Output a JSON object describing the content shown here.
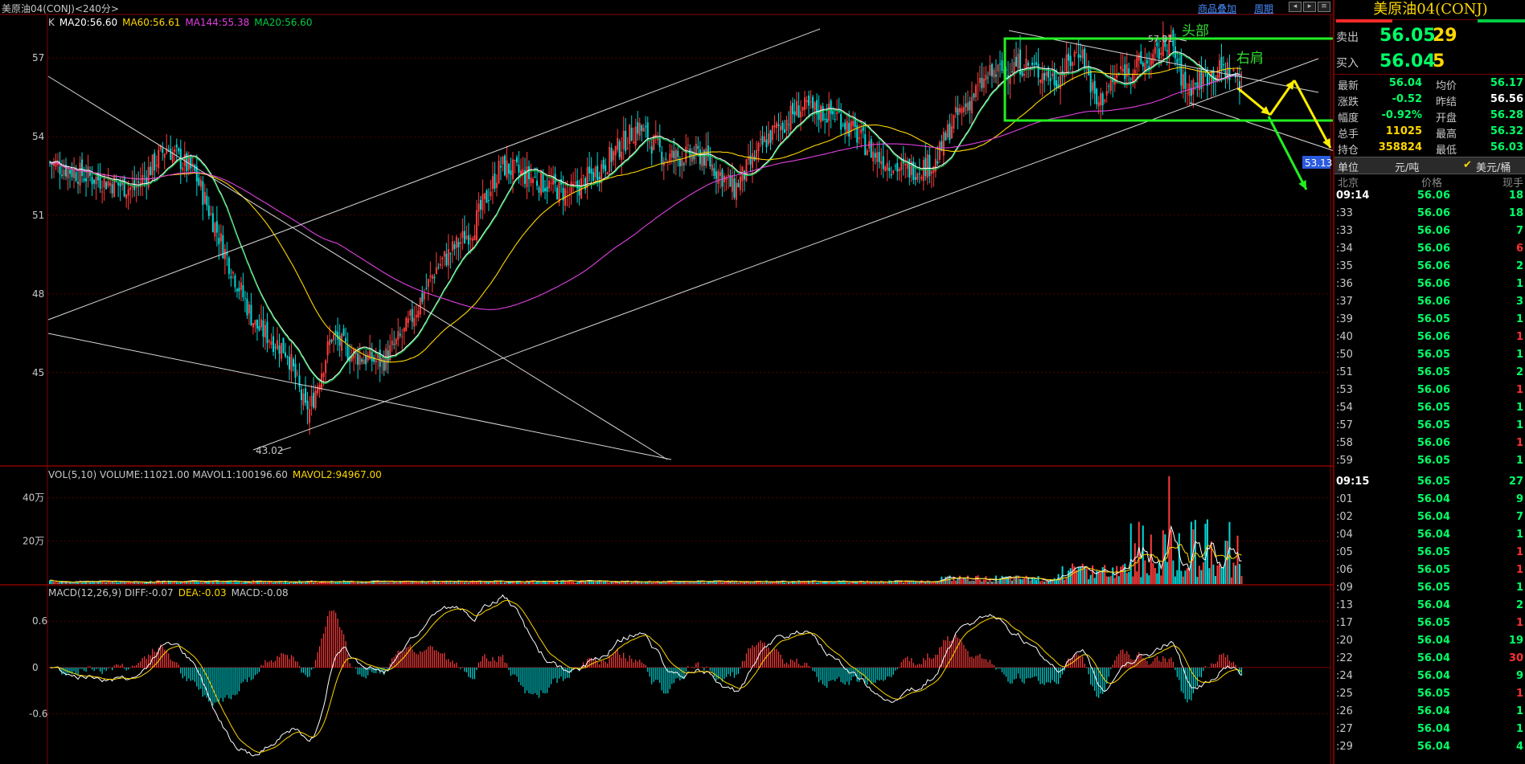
{
  "header": {
    "title": "美原油04(CONJ)<240分>",
    "overlay_btn": "商品叠加",
    "period_btn": "周期"
  },
  "legends": {
    "price": [
      {
        "text": "K",
        "color": "#c8c8c8"
      },
      {
        "text": "MA20:56.60",
        "color": "#ffffff"
      },
      {
        "text": "MA60:56.61",
        "color": "#ffd700"
      },
      {
        "text": "MA144:55.38",
        "color": "#e040e0"
      },
      {
        "text": "MA20:56.60",
        "color": "#00cc44"
      }
    ],
    "volume": [
      {
        "text": "VOL(5,10) VOLUME:11021.00 MAVOL1:100196.60",
        "color": "#c8c8c8"
      },
      {
        "text": "MAVOL2:94967.00",
        "color": "#ffd700"
      }
    ],
    "macd": [
      {
        "text": "MACD(12,26,9) DIFF:-0.07",
        "color": "#c8c8c8"
      },
      {
        "text": "DEA:-0.03",
        "color": "#ffd700"
      },
      {
        "text": "MACD:-0.08",
        "color": "#c8c8c8"
      }
    ]
  },
  "annotations": {
    "head": "头部",
    "right_shoulder": "右肩",
    "high_label": "57.81",
    "low_label": "43.02",
    "price_tag": "53.13"
  },
  "chart_data": {
    "type": "candlestick",
    "price_axis": {
      "ticks": [
        57,
        54,
        51,
        48,
        45
      ],
      "range": [
        41.5,
        58.6
      ]
    },
    "volume_axis": {
      "ticks": [
        "40万",
        "20万"
      ],
      "range_wan": [
        0,
        54
      ]
    },
    "macd_axis": {
      "ticks": [
        "0.6",
        "0",
        "-0.6"
      ],
      "range": [
        -1.25,
        1.05
      ]
    },
    "low": 43.02,
    "high": 57.81,
    "anchors": [
      [
        0,
        53.0
      ],
      [
        18,
        52.5
      ],
      [
        42,
        52.0
      ],
      [
        58,
        53.6
      ],
      [
        72,
        52.6
      ],
      [
        90,
        49.0
      ],
      [
        102,
        46.8
      ],
      [
        118,
        45.8
      ],
      [
        128,
        43.3
      ],
      [
        140,
        46.4
      ],
      [
        150,
        45.7
      ],
      [
        165,
        45.4
      ],
      [
        176,
        46.5
      ],
      [
        192,
        49.0
      ],
      [
        210,
        50.5
      ],
      [
        224,
        52.9
      ],
      [
        240,
        52.4
      ],
      [
        258,
        51.8
      ],
      [
        276,
        53.0
      ],
      [
        292,
        54.4
      ],
      [
        306,
        53.2
      ],
      [
        324,
        53.3
      ],
      [
        340,
        52.0
      ],
      [
        356,
        53.9
      ],
      [
        372,
        55.1
      ],
      [
        392,
        54.8
      ],
      [
        410,
        53.3
      ],
      [
        424,
        52.7
      ],
      [
        440,
        53.0
      ],
      [
        448,
        54.5
      ],
      [
        466,
        56.3
      ],
      [
        482,
        56.8
      ],
      [
        500,
        56.2
      ],
      [
        512,
        57.4
      ],
      [
        520,
        55.2
      ],
      [
        532,
        56.5
      ],
      [
        548,
        56.9
      ],
      [
        556,
        57.8
      ],
      [
        564,
        55.8
      ],
      [
        574,
        56.3
      ],
      [
        584,
        56.6
      ],
      [
        592,
        56.05
      ]
    ],
    "ma_series": [
      {
        "color": "#ffffff",
        "period": 20
      },
      {
        "color": "#00cc44",
        "period": 20
      },
      {
        "color": "#ffd700",
        "period": 60
      },
      {
        "color": "#e040e0",
        "period": 144
      }
    ],
    "macd": {
      "diff": -0.07,
      "dea": -0.03,
      "macd": -0.08
    },
    "volume_last": 11021.0,
    "mavol1": 100196.6,
    "mavol2": 94967.0
  },
  "quote": {
    "title": "美原油04(CONJ)",
    "sell": {
      "label": "卖出",
      "price": "56.05",
      "vol": "29"
    },
    "buy": {
      "label": "买入",
      "price": "56.04",
      "vol": "5"
    },
    "stats_left": [
      {
        "label": "最新",
        "value": "56.04",
        "color": "#00ff66"
      },
      {
        "label": "涨跌",
        "value": "-0.52",
        "color": "#00ff66"
      },
      {
        "label": "幅度",
        "value": "-0.92%",
        "color": "#00ff66"
      },
      {
        "label": "总手",
        "value": "11025",
        "color": "#ffd700"
      },
      {
        "label": "持仓",
        "value": "358824",
        "color": "#ffd700"
      }
    ],
    "stats_right": [
      {
        "label": "均价",
        "value": "56.17",
        "color": "#00ff66"
      },
      {
        "label": "昨结",
        "value": "56.56",
        "color": "#ffffff"
      },
      {
        "label": "开盘",
        "value": "56.28",
        "color": "#00ff66"
      },
      {
        "label": "最高",
        "value": "56.32",
        "color": "#00ff66"
      },
      {
        "label": "最低",
        "value": "56.03",
        "color": "#00ff66"
      }
    ],
    "unit_label": "单位",
    "unit_value": "元/吨",
    "unit_alt": "美元/桶",
    "tick_headers": {
      "time": "北京",
      "price": "价格",
      "vol": "现手"
    },
    "ticks": [
      {
        "t": "09:14",
        "p": "56.06",
        "v": "18",
        "pc": "#00ff66",
        "vc": "#00ff66",
        "bold": true
      },
      {
        "t": ":33",
        "p": "56.06",
        "v": "18",
        "pc": "#00ff66",
        "vc": "#00ff66"
      },
      {
        "t": ":33",
        "p": "56.06",
        "v": "7",
        "pc": "#00ff66",
        "vc": "#00ff66"
      },
      {
        "t": ":34",
        "p": "56.06",
        "v": "6",
        "pc": "#00ff66",
        "vc": "#ff3030"
      },
      {
        "t": ":35",
        "p": "56.06",
        "v": "2",
        "pc": "#00ff66",
        "vc": "#00ff66"
      },
      {
        "t": ":36",
        "p": "56.06",
        "v": "1",
        "pc": "#00ff66",
        "vc": "#00ff66"
      },
      {
        "t": ":37",
        "p": "56.06",
        "v": "3",
        "pc": "#00ff66",
        "vc": "#00ff66"
      },
      {
        "t": ":39",
        "p": "56.05",
        "v": "1",
        "pc": "#00ff66",
        "vc": "#00ff66"
      },
      {
        "t": ":40",
        "p": "56.06",
        "v": "1",
        "pc": "#00ff66",
        "vc": "#ff3030"
      },
      {
        "t": ":50",
        "p": "56.05",
        "v": "1",
        "pc": "#00ff66",
        "vc": "#00ff66"
      },
      {
        "t": ":51",
        "p": "56.05",
        "v": "2",
        "pc": "#00ff66",
        "vc": "#00ff66"
      },
      {
        "t": ":53",
        "p": "56.06",
        "v": "1",
        "pc": "#00ff66",
        "vc": "#ff3030"
      },
      {
        "t": ":54",
        "p": "56.05",
        "v": "1",
        "pc": "#00ff66",
        "vc": "#00ff66"
      },
      {
        "t": ":57",
        "p": "56.05",
        "v": "1",
        "pc": "#00ff66",
        "vc": "#00ff66"
      },
      {
        "t": ":58",
        "p": "56.06",
        "v": "1",
        "pc": "#00ff66",
        "vc": "#ff3030"
      },
      {
        "t": ":59",
        "p": "56.05",
        "v": "1",
        "pc": "#00ff66",
        "vc": "#00ff66"
      },
      {
        "t": "09:15",
        "p": "56.05",
        "v": "27",
        "pc": "#00ff66",
        "vc": "#00ff66",
        "bold": true
      },
      {
        "t": ":01",
        "p": "56.04",
        "v": "9",
        "pc": "#00ff66",
        "vc": "#00ff66"
      },
      {
        "t": ":02",
        "p": "56.04",
        "v": "7",
        "pc": "#00ff66",
        "vc": "#00ff66"
      },
      {
        "t": ":04",
        "p": "56.04",
        "v": "1",
        "pc": "#00ff66",
        "vc": "#00ff66"
      },
      {
        "t": ":05",
        "p": "56.05",
        "v": "1",
        "pc": "#00ff66",
        "vc": "#ff3030"
      },
      {
        "t": ":06",
        "p": "56.05",
        "v": "1",
        "pc": "#00ff66",
        "vc": "#ff3030"
      },
      {
        "t": ":09",
        "p": "56.05",
        "v": "1",
        "pc": "#00ff66",
        "vc": "#00ff66"
      },
      {
        "t": ":13",
        "p": "56.04",
        "v": "2",
        "pc": "#00ff66",
        "vc": "#00ff66"
      },
      {
        "t": ":17",
        "p": "56.05",
        "v": "1",
        "pc": "#00ff66",
        "vc": "#ff3030"
      },
      {
        "t": ":20",
        "p": "56.04",
        "v": "19",
        "pc": "#00ff66",
        "vc": "#00ff66"
      },
      {
        "t": ":22",
        "p": "56.04",
        "v": "30",
        "pc": "#00ff66",
        "vc": "#ff3030"
      },
      {
        "t": ":24",
        "p": "56.04",
        "v": "9",
        "pc": "#00ff66",
        "vc": "#00ff66"
      },
      {
        "t": ":25",
        "p": "56.05",
        "v": "1",
        "pc": "#00ff66",
        "vc": "#ff3030"
      },
      {
        "t": ":26",
        "p": "56.04",
        "v": "1",
        "pc": "#00ff66",
        "vc": "#00ff66"
      },
      {
        "t": ":27",
        "p": "56.04",
        "v": "1",
        "pc": "#00ff66",
        "vc": "#00ff66"
      },
      {
        "t": ":29",
        "p": "56.04",
        "v": "4",
        "pc": "#00ff66",
        "vc": "#00ff66"
      }
    ]
  }
}
